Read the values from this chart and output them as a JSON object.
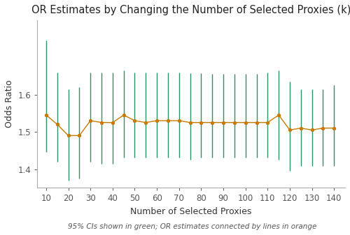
{
  "title": "OR Estimates by Changing the Number of Selected Proxies (k)",
  "xlabel": "Number of Selected Proxies",
  "ylabel": "Odds Ratio",
  "caption": "95% CIs shown in green; OR estimates connected by lines in orange",
  "k_values": [
    10,
    15,
    20,
    25,
    30,
    35,
    40,
    45,
    50,
    55,
    60,
    65,
    70,
    75,
    80,
    85,
    90,
    95,
    100,
    105,
    110,
    115,
    120,
    125,
    130,
    135,
    140
  ],
  "or_estimates": [
    1.545,
    1.52,
    1.49,
    1.49,
    1.53,
    1.525,
    1.525,
    1.545,
    1.53,
    1.525,
    1.53,
    1.53,
    1.53,
    1.525,
    1.525,
    1.525,
    1.525,
    1.525,
    1.525,
    1.525,
    1.525,
    1.545,
    1.505,
    1.51,
    1.505,
    1.51,
    1.51
  ],
  "ci_lower": [
    1.445,
    1.42,
    1.37,
    1.375,
    1.42,
    1.415,
    1.415,
    1.43,
    1.43,
    1.43,
    1.43,
    1.43,
    1.43,
    1.425,
    1.43,
    1.43,
    1.43,
    1.43,
    1.43,
    1.43,
    1.43,
    1.425,
    1.395,
    1.408,
    1.408,
    1.408,
    1.408
  ],
  "ci_upper": [
    1.745,
    1.66,
    1.615,
    1.62,
    1.66,
    1.66,
    1.66,
    1.665,
    1.66,
    1.66,
    1.66,
    1.66,
    1.66,
    1.658,
    1.658,
    1.656,
    1.656,
    1.656,
    1.655,
    1.655,
    1.66,
    1.665,
    1.635,
    1.615,
    1.615,
    1.615,
    1.625
  ],
  "or_color": "#c87a00",
  "ci_color": "#2a9068",
  "background_color": "#ffffff",
  "ylim_min": 1.35,
  "ylim_max": 1.8,
  "title_fontsize": 10.5,
  "axis_label_fontsize": 9,
  "tick_fontsize": 8.5,
  "caption_fontsize": 7.5,
  "xticks": [
    10,
    20,
    30,
    40,
    50,
    60,
    70,
    80,
    90,
    100,
    110,
    120,
    130,
    140
  ],
  "yticks": [
    1.4,
    1.5,
    1.6
  ],
  "spine_color": "#aaaaaa"
}
